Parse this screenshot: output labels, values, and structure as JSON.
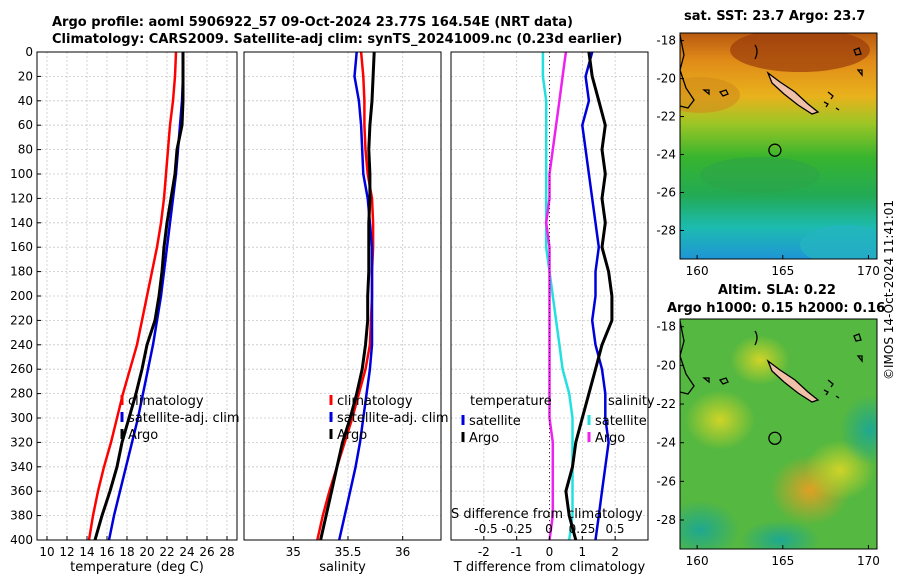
{
  "titles": {
    "line1": "Argo profile: aoml 5906922_57 09-Oct-2024 23.77S 164.54E (NRT data)",
    "line2": "Climatology: CARS2009. Satellite-adj clim: synTS_20241009.nc (0.23d earlier)",
    "sst": "sat. SST: 23.7 Argo: 23.7",
    "sla1": "Altim. SLA: 0.22",
    "sla2": "Argo h1000: 0.15 h2000: 0.16"
  },
  "copyright": "©IMOS 14-Oct-2024 11:41:01",
  "colors": {
    "red": "#ff0000",
    "blue": "#0000dd",
    "black": "#000000",
    "cyan": "#22e0e0",
    "magenta": "#ee22ee"
  },
  "chart_data": [
    {
      "type": "line",
      "name": "temperature-profile",
      "xlabel": "temperature (deg C)",
      "ylabel": "",
      "xlim": [
        9,
        29
      ],
      "ylim": [
        400,
        0
      ],
      "xticks": [
        10,
        12,
        14,
        16,
        18,
        20,
        22,
        24,
        26,
        28
      ],
      "yticks": [
        0,
        20,
        40,
        60,
        80,
        100,
        120,
        140,
        160,
        180,
        200,
        220,
        240,
        260,
        280,
        300,
        320,
        340,
        360,
        380,
        400
      ],
      "legend": [
        "climatology",
        "satellite-adj. clim",
        "Argo"
      ],
      "legend_position": "lower-right",
      "grid": true,
      "series": [
        {
          "name": "climatology",
          "color": "red",
          "points": [
            [
              22.9,
              0
            ],
            [
              22.8,
              20
            ],
            [
              22.6,
              40
            ],
            [
              22.3,
              60
            ],
            [
              22.1,
              80
            ],
            [
              21.9,
              100
            ],
            [
              21.7,
              120
            ],
            [
              21.4,
              140
            ],
            [
              21.0,
              160
            ],
            [
              20.5,
              180
            ],
            [
              20.0,
              200
            ],
            [
              19.5,
              220
            ],
            [
              19.0,
              240
            ],
            [
              18.3,
              260
            ],
            [
              17.6,
              280
            ],
            [
              17.0,
              300
            ],
            [
              16.4,
              320
            ],
            [
              15.7,
              340
            ],
            [
              15.1,
              360
            ],
            [
              14.6,
              380
            ],
            [
              14.2,
              400
            ]
          ]
        },
        {
          "name": "satellite-adj. clim",
          "color": "blue",
          "points": [
            [
              23.6,
              0
            ],
            [
              23.6,
              20
            ],
            [
              23.5,
              40
            ],
            [
              23.3,
              60
            ],
            [
              23.1,
              80
            ],
            [
              22.9,
              100
            ],
            [
              22.6,
              120
            ],
            [
              22.3,
              140
            ],
            [
              22.0,
              160
            ],
            [
              21.7,
              180
            ],
            [
              21.4,
              200
            ],
            [
              21.0,
              220
            ],
            [
              20.6,
              240
            ],
            [
              20.1,
              260
            ],
            [
              19.6,
              280
            ],
            [
              19.1,
              300
            ],
            [
              18.5,
              320
            ],
            [
              17.9,
              340
            ],
            [
              17.3,
              360
            ],
            [
              16.7,
              380
            ],
            [
              16.2,
              400
            ]
          ]
        },
        {
          "name": "Argo",
          "color": "black",
          "points": [
            [
              23.6,
              0
            ],
            [
              23.6,
              20
            ],
            [
              23.6,
              40
            ],
            [
              23.5,
              60
            ],
            [
              23.0,
              80
            ],
            [
              22.8,
              100
            ],
            [
              22.4,
              120
            ],
            [
              22.0,
              140
            ],
            [
              21.7,
              160
            ],
            [
              21.5,
              180
            ],
            [
              21.2,
              200
            ],
            [
              20.8,
              220
            ],
            [
              20.0,
              240
            ],
            [
              19.5,
              260
            ],
            [
              18.9,
              280
            ],
            [
              18.2,
              300
            ],
            [
              17.5,
              320
            ],
            [
              17.0,
              340
            ],
            [
              16.3,
              360
            ],
            [
              15.5,
              380
            ],
            [
              14.8,
              400
            ]
          ]
        }
      ]
    },
    {
      "type": "line",
      "name": "salinity-profile",
      "xlabel": "salinity",
      "ylabel": "",
      "xlim": [
        34.55,
        36.35
      ],
      "ylim": [
        400,
        0
      ],
      "xticks": [
        35,
        35.5,
        36
      ],
      "legend": [
        "climatology",
        "satellite-adj. clim",
        "Argo"
      ],
      "legend_position": "lower-right",
      "grid": true,
      "series": [
        {
          "name": "climatology",
          "color": "red",
          "points": [
            [
              35.62,
              0
            ],
            [
              35.64,
              20
            ],
            [
              35.65,
              40
            ],
            [
              35.65,
              60
            ],
            [
              35.66,
              80
            ],
            [
              35.68,
              100
            ],
            [
              35.72,
              120
            ],
            [
              35.73,
              140
            ],
            [
              35.73,
              160
            ],
            [
              35.72,
              180
            ],
            [
              35.72,
              200
            ],
            [
              35.71,
              220
            ],
            [
              35.7,
              240
            ],
            [
              35.66,
              260
            ],
            [
              35.6,
              280
            ],
            [
              35.54,
              300
            ],
            [
              35.47,
              320
            ],
            [
              35.4,
              340
            ],
            [
              35.33,
              360
            ],
            [
              35.27,
              380
            ],
            [
              35.22,
              400
            ]
          ]
        },
        {
          "name": "satellite-adj. clim",
          "color": "blue",
          "points": [
            [
              35.58,
              0
            ],
            [
              35.56,
              20
            ],
            [
              35.6,
              40
            ],
            [
              35.62,
              60
            ],
            [
              35.63,
              80
            ],
            [
              35.64,
              100
            ],
            [
              35.68,
              120
            ],
            [
              35.7,
              140
            ],
            [
              35.72,
              160
            ],
            [
              35.72,
              180
            ],
            [
              35.72,
              200
            ],
            [
              35.72,
              220
            ],
            [
              35.72,
              240
            ],
            [
              35.7,
              260
            ],
            [
              35.67,
              280
            ],
            [
              35.64,
              300
            ],
            [
              35.61,
              320
            ],
            [
              35.57,
              340
            ],
            [
              35.52,
              360
            ],
            [
              35.47,
              380
            ],
            [
              35.42,
              400
            ]
          ]
        },
        {
          "name": "Argo",
          "color": "black",
          "points": [
            [
              35.74,
              0
            ],
            [
              35.73,
              20
            ],
            [
              35.72,
              40
            ],
            [
              35.7,
              60
            ],
            [
              35.69,
              80
            ],
            [
              35.7,
              100
            ],
            [
              35.7,
              120
            ],
            [
              35.69,
              140
            ],
            [
              35.69,
              160
            ],
            [
              35.69,
              180
            ],
            [
              35.68,
              200
            ],
            [
              35.68,
              220
            ],
            [
              35.66,
              240
            ],
            [
              35.63,
              260
            ],
            [
              35.58,
              280
            ],
            [
              35.52,
              300
            ],
            [
              35.45,
              320
            ],
            [
              35.4,
              340
            ],
            [
              35.35,
              360
            ],
            [
              35.3,
              380
            ],
            [
              35.25,
              400
            ]
          ]
        }
      ]
    },
    {
      "type": "line",
      "name": "difference-from-climatology",
      "xlabel": "T difference from climatology",
      "x2label": "S difference from climatology",
      "xlim": [
        -3,
        3
      ],
      "ylim": [
        400,
        0
      ],
      "xticks": [
        -2,
        -1,
        0,
        1,
        2
      ],
      "x2ticks": [
        -0.5,
        -0.25,
        0,
        0.25,
        0.5
      ],
      "legend_headers": [
        "temperature",
        "salinity"
      ],
      "legend_t": [
        "satellite",
        "Argo"
      ],
      "legend_s": [
        "satellite",
        "Argo"
      ],
      "legend_position": "lower-right",
      "grid": true,
      "series": [
        {
          "name": "T satellite",
          "color": "cyan",
          "points": [
            [
              -0.2,
              0
            ],
            [
              -0.2,
              20
            ],
            [
              -0.1,
              40
            ],
            [
              -0.1,
              60
            ],
            [
              -0.1,
              80
            ],
            [
              -0.1,
              100
            ],
            [
              -0.1,
              120
            ],
            [
              -0.1,
              140
            ],
            [
              -0.1,
              160
            ],
            [
              0.0,
              180
            ],
            [
              0.1,
              200
            ],
            [
              0.2,
              220
            ],
            [
              0.3,
              240
            ],
            [
              0.4,
              260
            ],
            [
              0.6,
              280
            ],
            [
              0.7,
              300
            ],
            [
              0.7,
              320
            ],
            [
              0.7,
              340
            ],
            [
              0.7,
              360
            ],
            [
              0.7,
              380
            ],
            [
              0.6,
              400
            ]
          ]
        },
        {
          "name": "T Argo",
          "color": "magenta",
          "points": [
            [
              0.5,
              0
            ],
            [
              0.4,
              20
            ],
            [
              0.3,
              40
            ],
            [
              0.2,
              60
            ],
            [
              0.1,
              80
            ],
            [
              0.0,
              100
            ],
            [
              0.0,
              120
            ],
            [
              -0.1,
              140
            ],
            [
              0.0,
              160
            ],
            [
              0.0,
              180
            ],
            [
              0.0,
              200
            ],
            [
              0.0,
              220
            ],
            [
              0.0,
              240
            ],
            [
              0.0,
              260
            ],
            [
              0.0,
              280
            ],
            [
              0.0,
              300
            ],
            [
              0.1,
              320
            ],
            [
              0.1,
              340
            ],
            [
              0.1,
              360
            ],
            [
              0.1,
              380
            ],
            [
              0.0,
              400
            ]
          ]
        },
        {
          "name": "S satellite",
          "color": "blue",
          "points": [
            [
              1.3,
              0
            ],
            [
              1.1,
              20
            ],
            [
              1.2,
              40
            ],
            [
              1.0,
              60
            ],
            [
              1.1,
              80
            ],
            [
              1.2,
              100
            ],
            [
              1.3,
              120
            ],
            [
              1.4,
              140
            ],
            [
              1.5,
              160
            ],
            [
              1.4,
              180
            ],
            [
              1.4,
              200
            ],
            [
              1.3,
              220
            ],
            [
              1.4,
              240
            ],
            [
              1.6,
              260
            ],
            [
              1.7,
              280
            ],
            [
              1.7,
              300
            ],
            [
              1.8,
              320
            ],
            [
              1.7,
              340
            ],
            [
              1.6,
              360
            ],
            [
              1.5,
              380
            ],
            [
              1.4,
              400
            ]
          ]
        },
        {
          "name": "S Argo",
          "color": "black",
          "points": [
            [
              1.2,
              0
            ],
            [
              1.3,
              20
            ],
            [
              1.5,
              40
            ],
            [
              1.7,
              60
            ],
            [
              1.6,
              80
            ],
            [
              1.7,
              100
            ],
            [
              1.6,
              120
            ],
            [
              1.7,
              140
            ],
            [
              1.6,
              160
            ],
            [
              1.8,
              180
            ],
            [
              1.9,
              200
            ],
            [
              1.9,
              220
            ],
            [
              1.6,
              240
            ],
            [
              1.4,
              260
            ],
            [
              1.2,
              280
            ],
            [
              1.0,
              300
            ],
            [
              0.8,
              320
            ],
            [
              0.7,
              340
            ],
            [
              0.5,
              360
            ],
            [
              0.6,
              380
            ],
            [
              0.8,
              400
            ]
          ]
        }
      ]
    },
    {
      "type": "heatmap",
      "name": "sst-map",
      "title": "sat. SST: 23.7 Argo: 23.7",
      "xlim": [
        159,
        170.5
      ],
      "ylim": [
        -29.5,
        -17.6
      ],
      "xticks": [
        160,
        165,
        170
      ],
      "yticks": [
        -18,
        -20,
        -22,
        -24,
        -26,
        -28
      ],
      "argo_position": [
        164.54,
        -23.77
      ]
    },
    {
      "type": "heatmap",
      "name": "sla-map",
      "title": "Altim. SLA: 0.22",
      "xlim": [
        159,
        170.5
      ],
      "ylim": [
        -29.5,
        -17.6
      ],
      "xticks": [
        160,
        165,
        170
      ],
      "yticks": [
        -18,
        -20,
        -22,
        -24,
        -26,
        -28
      ],
      "argo_position": [
        164.54,
        -23.77
      ]
    }
  ]
}
